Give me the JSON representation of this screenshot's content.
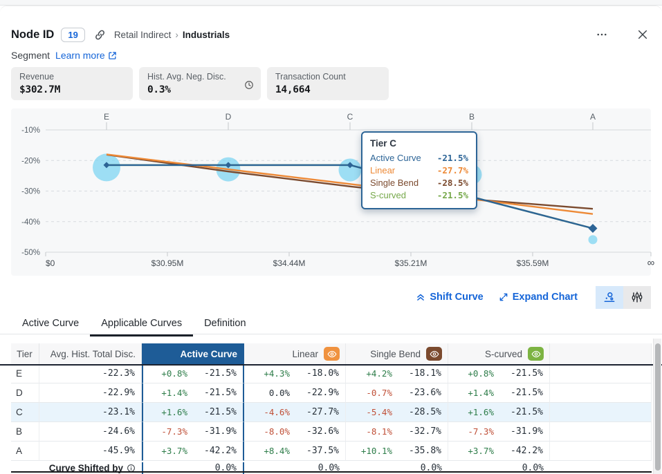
{
  "header": {
    "title": "Node ID",
    "badge": "19",
    "breadcrumb": {
      "parent": "Retail Indirect",
      "separator": "›",
      "leaf": "Industrials"
    }
  },
  "segment": {
    "label": "Segment",
    "link_label": "Learn more"
  },
  "stats": [
    {
      "label": "Revenue",
      "value": "$302.7M"
    },
    {
      "label": "Hist. Avg. Neg. Disc.",
      "value": "0.3%"
    },
    {
      "label": "Transaction Count",
      "value": "14,664"
    }
  ],
  "chart": {
    "tooltip": {
      "title": "Tier C",
      "rows": [
        {
          "label": "Active Curve",
          "value": "-21.5%",
          "color": "#2c6496"
        },
        {
          "label": "Linear",
          "value": "-27.7%",
          "color": "#ed8936"
        },
        {
          "label": "Single Bend",
          "value": "-28.5%",
          "color": "#7b4a2e"
        },
        {
          "label": "S-curved",
          "value": "-21.5%",
          "color": "#76a84a"
        }
      ]
    },
    "chart_data": {
      "type": "line",
      "categories": [
        "E",
        "D",
        "C",
        "B",
        "A"
      ],
      "x_tick_labels": [
        "$0",
        "$30.95M",
        "$34.44M",
        "$35.21M",
        "$35.59M",
        "∞"
      ],
      "y_tick_labels": [
        "-10%",
        "-20%",
        "-30%",
        "-40%",
        "-50%"
      ],
      "ylim": [
        -50,
        -10
      ],
      "series": [
        {
          "name": "S-curved",
          "color": "#76a84a",
          "values": [
            -21.5,
            -21.5,
            -21.5,
            -31.9,
            -42.2
          ]
        },
        {
          "name": "Single Bend",
          "color": "#7b4a2e",
          "values": [
            -18.1,
            -23.6,
            -28.5,
            -32.7,
            -35.8
          ]
        },
        {
          "name": "Linear",
          "color": "#ed8936",
          "values": [
            -18.0,
            -22.9,
            -27.7,
            -32.6,
            -37.5
          ]
        },
        {
          "name": "Active Curve",
          "color": "#2c6496",
          "values": [
            -21.5,
            -21.5,
            -21.5,
            -31.9,
            -42.2
          ]
        }
      ],
      "bubbles": {
        "name": "Avg. Hist. Total Disc.",
        "color": "#7fd6f2",
        "values": [
          -22.3,
          -22.9,
          -23.1,
          -24.6,
          -45.9
        ],
        "radii": [
          20,
          17.5,
          16.5,
          14.5,
          6.5
        ]
      },
      "grid": "dashed horizontal",
      "legend": "none"
    }
  },
  "chart_actions": {
    "shift": "Shift Curve",
    "expand": "Expand Chart"
  },
  "tabs": [
    {
      "label": "Active Curve"
    },
    {
      "label": "Applicable Curves"
    },
    {
      "label": "Definition"
    }
  ],
  "table": {
    "columns": {
      "tier": "Tier",
      "avg": "Avg. Hist. Total Disc.",
      "active": "Active Curve",
      "linear": "Linear",
      "single": "Single Bend",
      "scurved": "S-curved"
    },
    "rows": [
      {
        "tier": "E",
        "avg": "-22.3%",
        "cells": [
          {
            "delta": "+0.8%",
            "value": "-21.5%"
          },
          {
            "delta": "+4.3%",
            "value": "-18.0%"
          },
          {
            "delta": "+4.2%",
            "value": "-18.1%"
          },
          {
            "delta": "+0.8%",
            "value": "-21.5%"
          }
        ]
      },
      {
        "tier": "D",
        "avg": "-22.9%",
        "cells": [
          {
            "delta": "+1.4%",
            "value": "-21.5%"
          },
          {
            "delta": "0.0%",
            "value": "-22.9%"
          },
          {
            "delta": "-0.7%",
            "value": "-23.6%"
          },
          {
            "delta": "+1.4%",
            "value": "-21.5%"
          }
        ]
      },
      {
        "tier": "C",
        "avg": "-23.1%",
        "cells": [
          {
            "delta": "+1.6%",
            "value": "-21.5%"
          },
          {
            "delta": "-4.6%",
            "value": "-27.7%"
          },
          {
            "delta": "-5.4%",
            "value": "-28.5%"
          },
          {
            "delta": "+1.6%",
            "value": "-21.5%"
          }
        ]
      },
      {
        "tier": "B",
        "avg": "-24.6%",
        "cells": [
          {
            "delta": "-7.3%",
            "value": "-31.9%"
          },
          {
            "delta": "-8.0%",
            "value": "-32.6%"
          },
          {
            "delta": "-8.1%",
            "value": "-32.7%"
          },
          {
            "delta": "-7.3%",
            "value": "-31.9%"
          }
        ]
      },
      {
        "tier": "A",
        "avg": "-45.9%",
        "cells": [
          {
            "delta": "+3.7%",
            "value": "-42.2%"
          },
          {
            "delta": "+8.4%",
            "value": "-37.5%"
          },
          {
            "delta": "+10.1%",
            "value": "-35.8%"
          },
          {
            "delta": "+3.7%",
            "value": "-42.2%"
          }
        ]
      }
    ],
    "footer": {
      "label": "Curve Shifted by",
      "values": [
        "0.0%",
        "0.0%",
        "0.0%",
        "0.0%"
      ]
    }
  },
  "colors": {
    "accent_blue": "#1565d8",
    "active_curve": "#2c6496",
    "linear": "#ed8936",
    "single_bend": "#7b4a2e",
    "s_curved": "#76a84a",
    "bubble": "#7fd6f2",
    "row_highlight": "#e9f4fc",
    "delta_pos": "#2e7d4a",
    "delta_neg": "#c05038"
  }
}
